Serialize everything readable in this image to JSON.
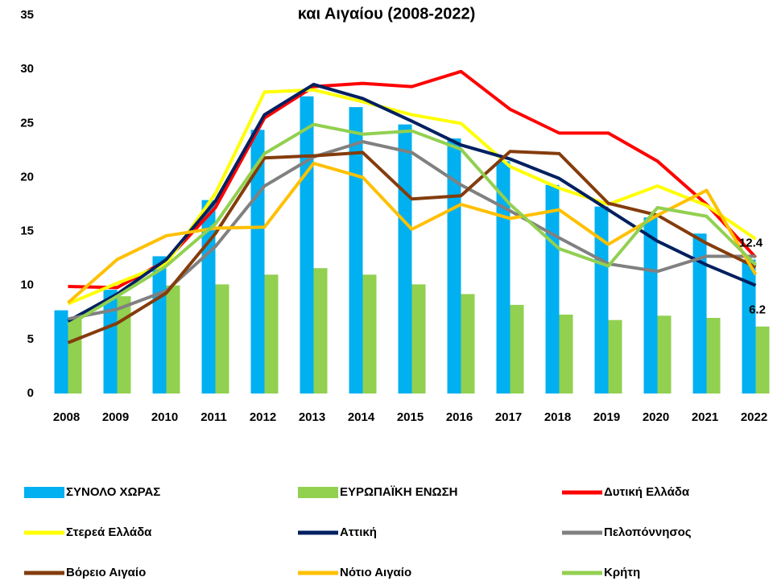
{
  "chart_data": {
    "type": "bar_line",
    "title": "και Αιγαίου (2008-2022)",
    "categories": [
      "2008",
      "2009",
      "2010",
      "2011",
      "2012",
      "2013",
      "2014",
      "2015",
      "2016",
      "2017",
      "2018",
      "2019",
      "2020",
      "2021",
      "2022"
    ],
    "ylim": [
      0,
      35
    ],
    "yticks": [
      0,
      5,
      10,
      15,
      20,
      25,
      30,
      35
    ],
    "grid": false,
    "label_last": true,
    "series": [
      {
        "name": "ΣΥΝΟΛΟ ΧΩΡΑΣ",
        "kind": "bar",
        "color": "#00b0f0",
        "values": [
          7.7,
          9.6,
          12.7,
          17.9,
          24.4,
          27.5,
          26.5,
          24.9,
          23.6,
          21.5,
          19.3,
          17.3,
          16.3,
          14.8,
          12.4
        ]
      },
      {
        "name": "ΕΥΡΩΠΑΪΚΗ ΕΝΩΣΗ",
        "kind": "bar",
        "color": "#92d050",
        "values": [
          7.0,
          9.0,
          10.0,
          10.1,
          11.0,
          11.6,
          11.0,
          10.1,
          9.2,
          8.2,
          7.3,
          6.8,
          7.2,
          7.0,
          6.2
        ]
      },
      {
        "name": "Δυτική Ελλάδα",
        "kind": "line",
        "color": "#ff0000",
        "values": [
          9.9,
          9.8,
          12.3,
          17.2,
          25.5,
          28.4,
          28.7,
          28.4,
          29.8,
          26.3,
          24.1,
          24.1,
          21.5,
          17.5,
          12.6
        ]
      },
      {
        "name": "Στερεά Ελλάδα",
        "kind": "line",
        "color": "#ffff00",
        "values": [
          8.3,
          10.2,
          12.0,
          18.5,
          27.9,
          28.1,
          27.0,
          25.8,
          25.0,
          21.0,
          19.0,
          17.5,
          19.2,
          17.4,
          14.3
        ]
      },
      {
        "name": "Αττική",
        "kind": "line",
        "color": "#002060",
        "values": [
          6.7,
          9.2,
          12.4,
          17.8,
          25.8,
          28.6,
          27.3,
          25.2,
          23.0,
          21.7,
          19.9,
          17.0,
          14.1,
          11.9,
          10.0
        ]
      },
      {
        "name": "Πελοπόννησος",
        "kind": "line",
        "color": "#808080",
        "values": [
          6.9,
          7.8,
          9.5,
          13.6,
          19.2,
          21.9,
          23.3,
          22.3,
          19.3,
          16.9,
          14.4,
          12.0,
          11.3,
          12.7,
          12.7
        ]
      },
      {
        "name": "Βόρειο Αιγαίο",
        "kind": "line",
        "color": "#843c0c",
        "values": [
          4.7,
          6.5,
          9.3,
          14.8,
          21.8,
          22.0,
          22.3,
          18.0,
          18.3,
          22.4,
          22.2,
          17.6,
          16.5,
          13.9,
          11.7
        ]
      },
      {
        "name": "Νότιο Αιγαίο",
        "kind": "line",
        "color": "#ffc000",
        "values": [
          8.4,
          12.4,
          14.6,
          15.3,
          15.4,
          21.3,
          20.0,
          15.2,
          17.5,
          16.2,
          17.0,
          13.8,
          16.5,
          18.8,
          11.0
        ]
      },
      {
        "name": "Κρήτη",
        "kind": "line",
        "color": "#92d050",
        "values": [
          6.3,
          9.0,
          11.8,
          15.7,
          22.2,
          24.9,
          24.0,
          24.3,
          22.6,
          17.5,
          13.4,
          11.8,
          17.2,
          16.4,
          11.9
        ]
      }
    ]
  }
}
